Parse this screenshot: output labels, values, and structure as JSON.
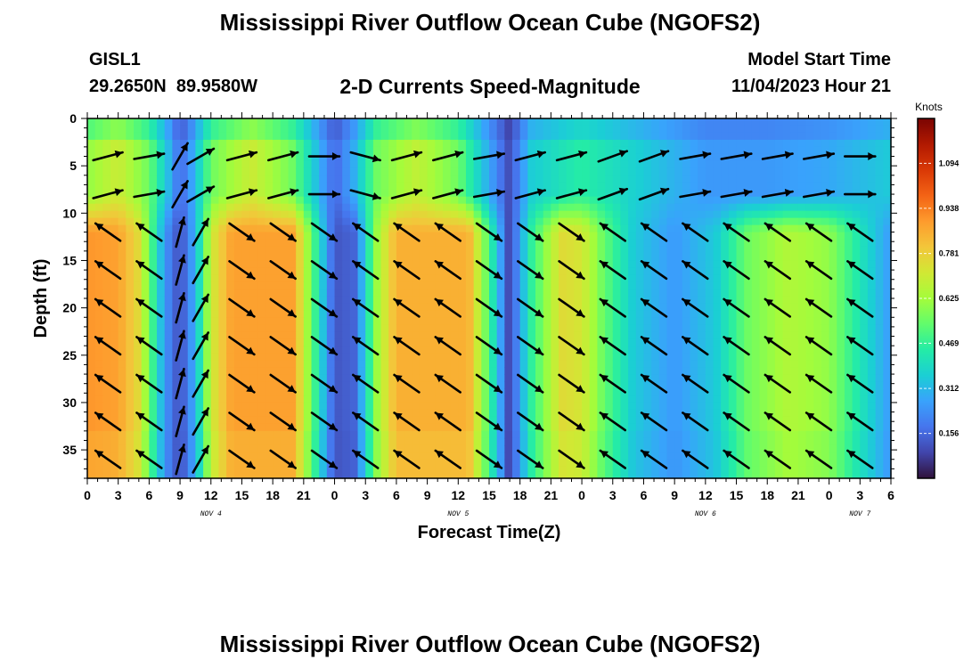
{
  "header": {
    "title": "Mississippi River Outflow Ocean Cube (NGOFS2)",
    "station": "GISL1",
    "coords": "29.2650N  89.9580W",
    "subtitle": "2-D Currents Speed-Magnitude",
    "model_start_label": "Model Start Time",
    "model_start_value": "11/04/2023 Hour 21"
  },
  "footer": {
    "title": "Mississippi River Outflow Ocean Cube (NGOFS2)"
  },
  "colors": {
    "colormap": [
      "#30123b",
      "#4145ab",
      "#4675ed",
      "#39a2fc",
      "#1bcfd4",
      "#24eca6",
      "#61fc6c",
      "#a4fc3b",
      "#d1e834",
      "#f3c63a",
      "#fe9b2d",
      "#f36315",
      "#d93806",
      "#b11901",
      "#7a0402"
    ],
    "arrow": "#000000"
  },
  "chart_data": {
    "type": "heatmap",
    "title": "2-D Currents Speed-Magnitude",
    "xlabel": "Forecast Time(Z)",
    "ylabel": "Depth (ft)",
    "x_unit": "hours since 2023-11-04 00Z",
    "x_range": [
      0,
      78
    ],
    "x_ticks": [
      0,
      3,
      6,
      9,
      12,
      15,
      18,
      21,
      24,
      27,
      30,
      33,
      36,
      39,
      42,
      45,
      48,
      51,
      54,
      57,
      60,
      63,
      66,
      69,
      72,
      75,
      78
    ],
    "x_tick_labels": [
      "0",
      "3",
      "6",
      "9",
      "12",
      "15",
      "18",
      "21",
      "0",
      "3",
      "6",
      "9",
      "12",
      "15",
      "18",
      "21",
      "0",
      "3",
      "6",
      "9",
      "12",
      "15",
      "18",
      "21",
      "0",
      "3",
      "6"
    ],
    "day_labels": [
      {
        "text": "NOV 4",
        "x": 12
      },
      {
        "text": "NOV 5",
        "x": 36
      },
      {
        "text": "NOV 6",
        "x": 60
      },
      {
        "text": "NOV 7",
        "x": 75
      }
    ],
    "y_range": [
      0,
      38
    ],
    "y_inverted": true,
    "y_ticks": [
      0,
      5,
      10,
      15,
      20,
      25,
      30,
      35
    ],
    "colorbar": {
      "unit": "Knots",
      "range": [
        0,
        1.25
      ],
      "labels": [
        "1.094",
        "0.938",
        "0.781",
        "0.625",
        "0.469",
        "0.312",
        "0.156"
      ],
      "label_values": [
        1.094,
        0.938,
        0.781,
        0.625,
        0.469,
        0.312,
        0.156
      ]
    },
    "surface_speed_knots": [
      [
        0,
        0.6
      ],
      [
        3,
        0.7
      ],
      [
        6,
        0.55
      ],
      [
        8,
        0.3
      ],
      [
        9,
        0.15
      ],
      [
        10,
        0.25
      ],
      [
        12,
        0.55
      ],
      [
        16,
        0.7
      ],
      [
        20,
        0.55
      ],
      [
        22,
        0.35
      ],
      [
        24,
        0.15
      ],
      [
        26,
        0.3
      ],
      [
        28,
        0.55
      ],
      [
        32,
        0.68
      ],
      [
        36,
        0.55
      ],
      [
        41,
        0.1
      ],
      [
        43,
        0.35
      ],
      [
        48,
        0.45
      ],
      [
        54,
        0.35
      ],
      [
        60,
        0.25
      ],
      [
        66,
        0.25
      ],
      [
        72,
        0.28
      ],
      [
        78,
        0.35
      ]
    ],
    "subsurface_speed_knots": [
      [
        0,
        0.9
      ],
      [
        3,
        0.88
      ],
      [
        5,
        0.75
      ],
      [
        6.5,
        0.45
      ],
      [
        7.5,
        0.25
      ],
      [
        9,
        0.1
      ],
      [
        10.5,
        0.3
      ],
      [
        12,
        0.7
      ],
      [
        14,
        0.88
      ],
      [
        20,
        0.88
      ],
      [
        22,
        0.5
      ],
      [
        24,
        0.12
      ],
      [
        26,
        0.15
      ],
      [
        28,
        0.6
      ],
      [
        30,
        0.85
      ],
      [
        37,
        0.85
      ],
      [
        39,
        0.5
      ],
      [
        41,
        0.08
      ],
      [
        43,
        0.45
      ],
      [
        46,
        0.75
      ],
      [
        48,
        0.72
      ],
      [
        50,
        0.55
      ],
      [
        53,
        0.35
      ],
      [
        57,
        0.25
      ],
      [
        61,
        0.35
      ],
      [
        64,
        0.55
      ],
      [
        68,
        0.65
      ],
      [
        72,
        0.6
      ],
      [
        75,
        0.42
      ],
      [
        78,
        0.25
      ]
    ],
    "arrow_columns": [
      {
        "x": 2,
        "surf": 15,
        "mid": 145
      },
      {
        "x": 6,
        "surf": 10,
        "mid": 145
      },
      {
        "x": 9,
        "surf": 60,
        "mid": 75
      },
      {
        "x": 11,
        "surf": 30,
        "mid": 60
      },
      {
        "x": 15,
        "surf": 15,
        "mid": -35
      },
      {
        "x": 19,
        "surf": 15,
        "mid": -35
      },
      {
        "x": 23,
        "surf": 0,
        "mid": -35
      },
      {
        "x": 27,
        "surf": -15,
        "mid": 145
      },
      {
        "x": 31,
        "surf": 15,
        "mid": 145
      },
      {
        "x": 35,
        "surf": 15,
        "mid": 145
      },
      {
        "x": 39,
        "surf": 10,
        "mid": -35
      },
      {
        "x": 43,
        "surf": 15,
        "mid": -35
      },
      {
        "x": 47,
        "surf": 15,
        "mid": -35
      },
      {
        "x": 51,
        "surf": 20,
        "mid": 145
      },
      {
        "x": 55,
        "surf": 20,
        "mid": 145
      },
      {
        "x": 59,
        "surf": 10,
        "mid": 145
      },
      {
        "x": 63,
        "surf": 10,
        "mid": 145
      },
      {
        "x": 67,
        "surf": 10,
        "mid": 145
      },
      {
        "x": 71,
        "surf": 10,
        "mid": 145
      },
      {
        "x": 75,
        "surf": 0,
        "mid": 145
      }
    ]
  }
}
